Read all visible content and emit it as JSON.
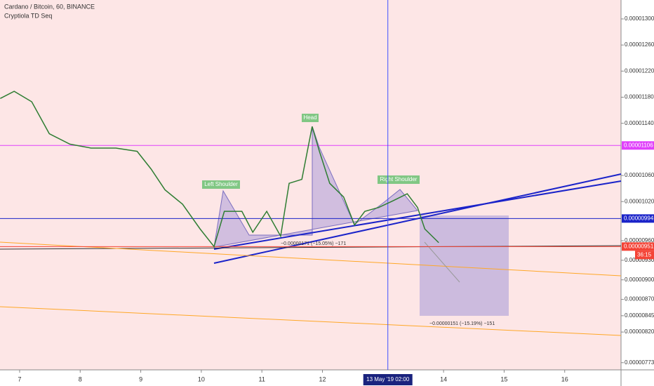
{
  "chart_data": {
    "type": "line",
    "title": "Cardano / Bitcoin, 60, BINANCE",
    "subtitle": "Cryptiola TD Seq",
    "color": "#2e7d32",
    "x": [
      6.68,
      6.91,
      7.2,
      7.49,
      7.83,
      8.18,
      8.59,
      8.94,
      9.17,
      9.4,
      9.69,
      9.98,
      10.21,
      10.38,
      10.67,
      10.85,
      11.08,
      11.31,
      11.45,
      11.66,
      11.83,
      11.95,
      12.12,
      12.35,
      12.53,
      12.7,
      12.93,
      13.16,
      13.4,
      13.57,
      13.69,
      13.92
    ],
    "values": [
      1.178e-05,
      1.189e-05,
      1.173e-05,
      1.124e-05,
      1.108e-05,
      1.102e-05,
      1.102e-05,
      1.097e-05,
      1.07e-05,
      1.038e-05,
      1.016e-05,
      9.78e-06,
      9.51e-06,
      1.005e-05,
      1.005e-05,
      9.73e-06,
      1.005e-05,
      9.67e-06,
      1.048e-05,
      1.054e-05,
      1.135e-05,
      1.097e-05,
      1.048e-05,
      1.027e-05,
      9.84e-06,
      1.005e-05,
      1.011e-05,
      1.021e-05,
      1.032e-05,
      1.011e-05,
      9.78e-06,
      9.57e-06
    ],
    "xlim": [
      6.676,
      16.93
    ],
    "xticks": [
      7,
      8,
      9,
      10,
      11,
      12,
      14,
      15,
      16
    ],
    "ylim": [
      1.329e-05,
      7.62e-06
    ],
    "yticks": [
      {
        "value": 1.3e-05,
        "label": "0.00001300"
      },
      {
        "value": 1.26e-05,
        "label": "0.00001260"
      },
      {
        "value": 1.22e-05,
        "label": "0.00001220"
      },
      {
        "value": 1.18e-05,
        "label": "0.00001180"
      },
      {
        "value": 1.14e-05,
        "label": "0.00001140"
      },
      {
        "value": 1.06e-05,
        "label": "0.00001060"
      },
      {
        "value": 1.02e-05,
        "label": "0.00001020"
      },
      {
        "value": 9.6e-06,
        "label": "0.00000960"
      },
      {
        "value": 9.3e-06,
        "label": "0.00000930"
      },
      {
        "value": 9e-06,
        "label": "0.00000900"
      },
      {
        "value": 8.7e-06,
        "label": "0.00000870"
      },
      {
        "value": 8.45e-06,
        "label": "0.00000845"
      },
      {
        "value": 8.2e-06,
        "label": "0.00000820"
      },
      {
        "value": 7.73e-06,
        "label": "0.00000773"
      }
    ],
    "price_lines": [
      {
        "value": 1.106e-05,
        "label": "0.00001106",
        "color": "#e040fb"
      },
      {
        "value": 9.94e-06,
        "label": "0.00000994",
        "color": "#1a23c9"
      },
      {
        "value": 9.51e-06,
        "label": "0.00000951",
        "color": "#f44336"
      }
    ],
    "countdown": "36:15",
    "crosshair": {
      "x": 13.08,
      "label": "13 May '19  02:00"
    },
    "annotations": {
      "head": "Head",
      "left_shoulder": "Left Shoulder",
      "right_shoulder": "Right Shoulder",
      "measure1": "−0.00000171 (−15.05%) −171",
      "measure2": "−0.00000151 (−15.19%) −151"
    }
  }
}
